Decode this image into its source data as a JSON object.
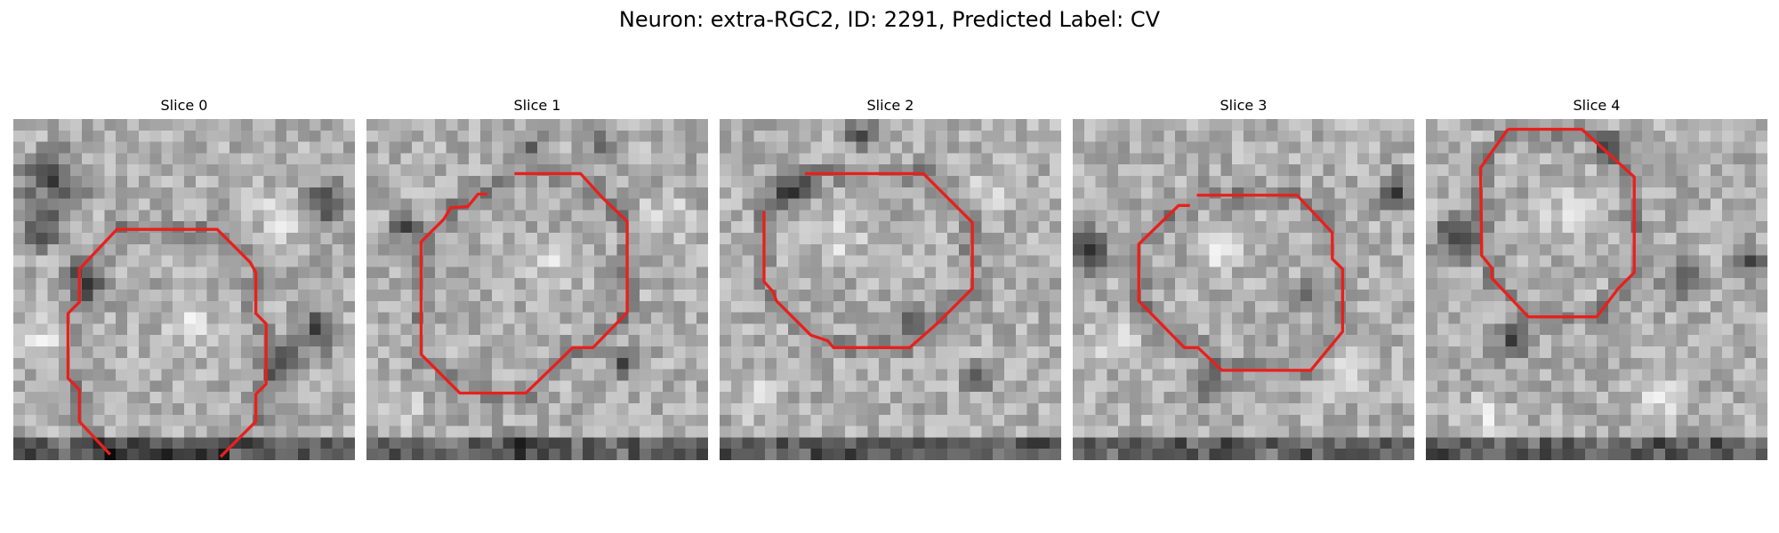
{
  "figure": {
    "title": "Neuron: extra-RGC2, ID: 2291, Predicted Label: CV"
  },
  "colors": {
    "contour": "#e8201c",
    "background": "#ffffff"
  },
  "slices": [
    {
      "label": "Slice 0"
    },
    {
      "label": "Slice 1"
    },
    {
      "label": "Slice 2"
    },
    {
      "label": "Slice 3"
    },
    {
      "label": "Slice 4"
    }
  ]
}
